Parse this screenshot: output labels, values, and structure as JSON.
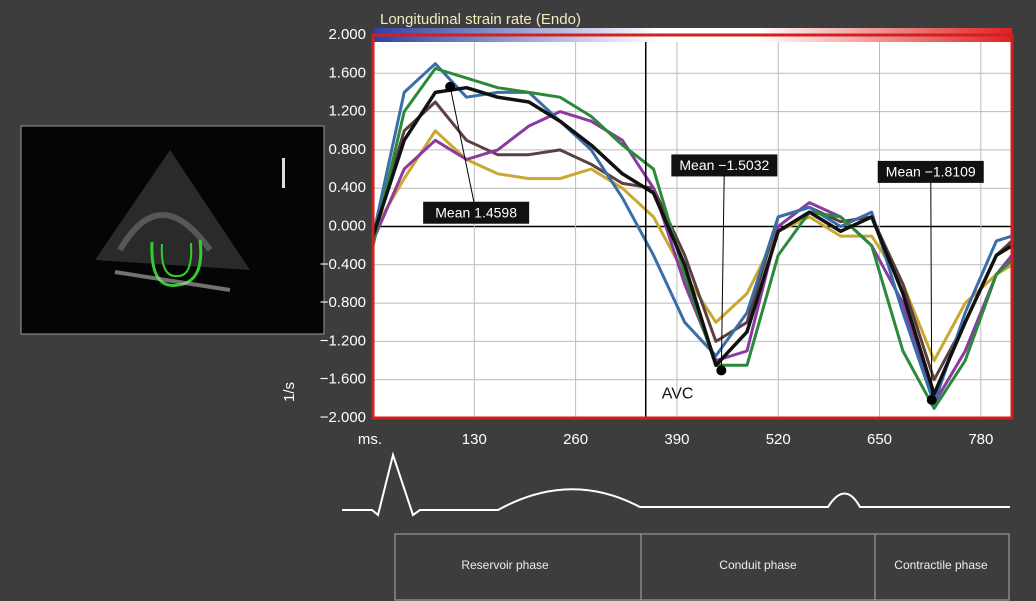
{
  "chart_data": {
    "type": "line",
    "title": "Longitudinal strain rate (Endo)",
    "xlabel": "ms.",
    "ylabel": "1/s",
    "x": [
      0,
      40,
      80,
      120,
      160,
      200,
      240,
      280,
      320,
      360,
      400,
      440,
      480,
      520,
      560,
      600,
      640,
      680,
      720,
      760,
      800,
      820
    ],
    "series": [
      {
        "color": "#c8a830",
        "values": [
          -0.05,
          0.5,
          1.0,
          0.7,
          0.55,
          0.5,
          0.5,
          0.6,
          0.4,
          0.1,
          -0.5,
          -1.0,
          -0.7,
          -0.05,
          0.1,
          -0.1,
          -0.1,
          -0.6,
          -1.4,
          -0.8,
          -0.5,
          -0.4
        ]
      },
      {
        "color": "#5a4040",
        "values": [
          -0.1,
          1.0,
          1.3,
          0.9,
          0.75,
          0.75,
          0.8,
          0.65,
          0.45,
          0.4,
          -0.3,
          -1.2,
          -1.0,
          0.1,
          0.2,
          0.05,
          0.1,
          -0.6,
          -1.6,
          -1.0,
          -0.3,
          -0.15
        ]
      },
      {
        "color": "#8a3aa0",
        "values": [
          -0.15,
          0.6,
          0.9,
          0.7,
          0.8,
          1.05,
          1.2,
          1.1,
          0.9,
          0.4,
          -0.6,
          -1.4,
          -1.3,
          0.0,
          0.25,
          0.1,
          -0.2,
          -0.8,
          -1.85,
          -1.3,
          -0.5,
          -0.3
        ]
      },
      {
        "color": "#3a6ea8",
        "values": [
          -0.1,
          1.4,
          1.7,
          1.35,
          1.4,
          1.4,
          1.1,
          0.8,
          0.3,
          -0.3,
          -1.0,
          -1.35,
          -0.9,
          0.1,
          0.2,
          0.0,
          0.15,
          -0.9,
          -1.85,
          -0.9,
          -0.15,
          -0.1
        ]
      },
      {
        "color": "#2a8a3a",
        "values": [
          -0.2,
          1.2,
          1.65,
          1.55,
          1.45,
          1.4,
          1.35,
          1.15,
          0.85,
          0.6,
          -0.5,
          -1.45,
          -1.45,
          -0.3,
          0.15,
          0.1,
          -0.2,
          -1.3,
          -1.9,
          -1.4,
          -0.5,
          -0.35
        ]
      },
      {
        "color": "#111111",
        "values": [
          -0.1,
          0.9,
          1.4,
          1.45,
          1.35,
          1.3,
          1.1,
          0.85,
          0.55,
          0.35,
          -0.4,
          -1.45,
          -1.1,
          -0.05,
          0.15,
          -0.05,
          0.1,
          -0.7,
          -1.75,
          -1.0,
          -0.3,
          -0.2
        ]
      }
    ],
    "xlim": [
      0,
      820
    ],
    "xticks": [
      130,
      260,
      390,
      520,
      650,
      780
    ],
    "ylim": [
      -2,
      2
    ],
    "yticks": [
      {
        "value": -2,
        "label": "−2.000"
      },
      {
        "value": -1.6,
        "label": "−1.600"
      },
      {
        "value": -1.2,
        "label": "−1.200"
      },
      {
        "value": -0.8,
        "label": "−0.800"
      },
      {
        "value": -0.4,
        "label": "−0.400"
      },
      {
        "value": 0,
        "label": "0.000"
      },
      {
        "value": 0.4,
        "label": "0.400"
      },
      {
        "value": 0.8,
        "label": "0.800"
      },
      {
        "value": 1.2,
        "label": "1.200"
      },
      {
        "value": 1.6,
        "label": "1.600"
      },
      {
        "value": 2,
        "label": "2.000"
      }
    ],
    "grid": true,
    "annotations": [
      {
        "text": "Mean 1.4598",
        "x": 99,
        "y": 1.4598
      },
      {
        "text": "Mean −1.5032",
        "x": 447,
        "y": -1.5032
      },
      {
        "text": "Mean −1.8109",
        "x": 717,
        "y": -1.8109
      }
    ],
    "vline": {
      "text": "AVC",
      "x": 350
    }
  },
  "phases": [
    "Reservoir phase",
    "Conduit phase",
    "Contractile phase"
  ]
}
